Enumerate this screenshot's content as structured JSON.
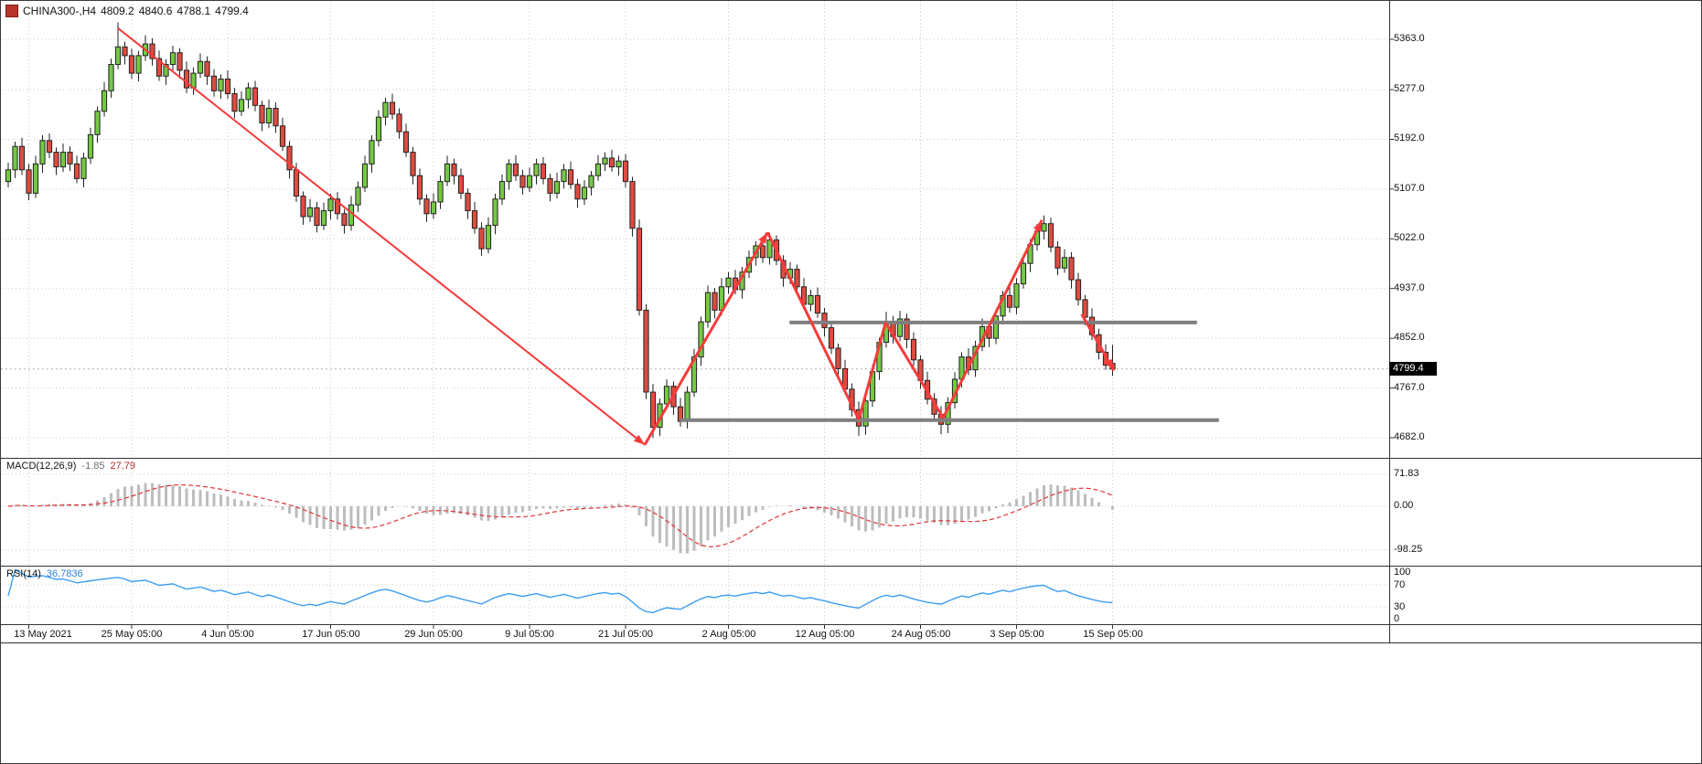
{
  "header": {
    "symbol_period": "CHINA300-,H4",
    "open": "4809.2",
    "high": "4840.6",
    "low": "4788.1",
    "close": "4799.4"
  },
  "price_tag": "4799.4",
  "panes": {
    "macd": {
      "name": "MACD(12,26,9)",
      "value_main": "-1.85",
      "value_signal": "27.79",
      "axis_labels": [
        "71.83",
        "0.00",
        "-98.25"
      ],
      "axis_values": [
        71.83,
        0,
        -98.25
      ]
    },
    "rsi": {
      "name": "RSI(14)",
      "value": "36.7836",
      "axis_labels": [
        "100",
        "70",
        "30",
        "0"
      ],
      "axis_values": [
        100,
        70,
        30,
        0
      ]
    }
  },
  "colors": {
    "background": "#ffffff",
    "grid": "#c9c9c9",
    "separator": "#333333",
    "candle_up": "#74c943",
    "candle_down": "#e04b3f",
    "candle_outline": "#222222",
    "trend_arrow": "#f63b3b",
    "sr_line": "#7f7f7f",
    "macd_histogram": "#bdbdbd",
    "macd_signal": "#e03535",
    "rsi_line": "#3d9df2",
    "price_line": "#b0b0b0",
    "price_tag_bg": "#000000",
    "price_tag_text": "#ffffff"
  },
  "chart_data": {
    "type": "candlestick",
    "title": "CHINA300-,H4",
    "symbol": "CHINA300-",
    "timeframe": "H4",
    "last_ohlc": {
      "open": 4809.2,
      "high": 4840.6,
      "low": 4788.1,
      "close": 4799.4
    },
    "current_price": 4799.4,
    "ylim": [
      4640,
      5405
    ],
    "y_ticks": [
      5363,
      5277,
      5192,
      5107,
      5022,
      4937,
      4852,
      4767,
      4682
    ],
    "y_tick_labels": [
      "5363.0",
      "5277.0",
      "5192.0",
      "5107.0",
      "5022.0",
      "4937.0",
      "4852.0",
      "4767.0",
      "4682.0"
    ],
    "x_ticks": [
      {
        "label": "13 May 2021",
        "bar": 3
      },
      {
        "label": "25 May 05:00",
        "bar": 18
      },
      {
        "label": "4 Jun 05:00",
        "bar": 32
      },
      {
        "label": "17 Jun 05:00",
        "bar": 47
      },
      {
        "label": "29 Jun 05:00",
        "bar": 62
      },
      {
        "label": "9 Jul 05:00",
        "bar": 76
      },
      {
        "label": "21 Jul 05:00",
        "bar": 90
      },
      {
        "label": "2 Aug 05:00",
        "bar": 105
      },
      {
        "label": "12 Aug 05:00",
        "bar": 119
      },
      {
        "label": "24 Aug 05:00",
        "bar": 133
      },
      {
        "label": "3 Sep 05:00",
        "bar": 147
      },
      {
        "label": "15 Sep 05:00",
        "bar": 161
      }
    ],
    "ohlc": [
      [
        5120,
        5152,
        5110,
        5140
      ],
      [
        5140,
        5188,
        5126,
        5180
      ],
      [
        5180,
        5195,
        5131,
        5140
      ],
      [
        5140,
        5150,
        5088,
        5100
      ],
      [
        5100,
        5164,
        5092,
        5150
      ],
      [
        5150,
        5199,
        5135,
        5190
      ],
      [
        5190,
        5202,
        5160,
        5170
      ],
      [
        5170,
        5178,
        5131,
        5145
      ],
      [
        5145,
        5185,
        5136,
        5170
      ],
      [
        5170,
        5180,
        5138,
        5150
      ],
      [
        5150,
        5164,
        5117,
        5125
      ],
      [
        5125,
        5169,
        5110,
        5160
      ],
      [
        5160,
        5212,
        5150,
        5200
      ],
      [
        5200,
        5248,
        5186,
        5240
      ],
      [
        5240,
        5290,
        5231,
        5275
      ],
      [
        5275,
        5330,
        5263,
        5320
      ],
      [
        5320,
        5392,
        5312,
        5350
      ],
      [
        5350,
        5359,
        5320,
        5335
      ],
      [
        5335,
        5347,
        5295,
        5305
      ],
      [
        5305,
        5343,
        5291,
        5335
      ],
      [
        5335,
        5370,
        5326,
        5355
      ],
      [
        5355,
        5365,
        5318,
        5330
      ],
      [
        5330,
        5344,
        5292,
        5300
      ],
      [
        5300,
        5329,
        5285,
        5320
      ],
      [
        5320,
        5352,
        5310,
        5340
      ],
      [
        5340,
        5348,
        5296,
        5310
      ],
      [
        5310,
        5325,
        5271,
        5280
      ],
      [
        5280,
        5315,
        5268,
        5305
      ],
      [
        5305,
        5339,
        5297,
        5325
      ],
      [
        5325,
        5334,
        5285,
        5300
      ],
      [
        5300,
        5312,
        5265,
        5275
      ],
      [
        5275,
        5303,
        5261,
        5295
      ],
      [
        5295,
        5310,
        5261,
        5270
      ],
      [
        5270,
        5280,
        5228,
        5240
      ],
      [
        5240,
        5274,
        5232,
        5260
      ],
      [
        5260,
        5289,
        5245,
        5280
      ],
      [
        5280,
        5292,
        5240,
        5250
      ],
      [
        5250,
        5258,
        5206,
        5220
      ],
      [
        5220,
        5260,
        5211,
        5245
      ],
      [
        5245,
        5255,
        5203,
        5215
      ],
      [
        5215,
        5229,
        5172,
        5180
      ],
      [
        5180,
        5189,
        5125,
        5140
      ],
      [
        5140,
        5152,
        5085,
        5095
      ],
      [
        5095,
        5103,
        5046,
        5060
      ],
      [
        5060,
        5090,
        5051,
        5075
      ],
      [
        5075,
        5085,
        5033,
        5045
      ],
      [
        5045,
        5084,
        5037,
        5070
      ],
      [
        5070,
        5099,
        5055,
        5090
      ],
      [
        5090,
        5102,
        5055,
        5065
      ],
      [
        5065,
        5073,
        5031,
        5045
      ],
      [
        5045,
        5095,
        5036,
        5080
      ],
      [
        5080,
        5120,
        5068,
        5110
      ],
      [
        5110,
        5164,
        5102,
        5150
      ],
      [
        5150,
        5199,
        5135,
        5190
      ],
      [
        5190,
        5242,
        5180,
        5230
      ],
      [
        5230,
        5263,
        5216,
        5255
      ],
      [
        5255,
        5270,
        5226,
        5235
      ],
      [
        5235,
        5245,
        5193,
        5205
      ],
      [
        5205,
        5219,
        5162,
        5170
      ],
      [
        5170,
        5179,
        5115,
        5130
      ],
      [
        5130,
        5142,
        5080,
        5090
      ],
      [
        5090,
        5098,
        5051,
        5065
      ],
      [
        5065,
        5100,
        5056,
        5085
      ],
      [
        5085,
        5130,
        5073,
        5120
      ],
      [
        5120,
        5164,
        5112,
        5150
      ],
      [
        5150,
        5159,
        5115,
        5130
      ],
      [
        5130,
        5142,
        5090,
        5100
      ],
      [
        5100,
        5108,
        5056,
        5070
      ],
      [
        5070,
        5085,
        5031,
        5040
      ],
      [
        5040,
        5050,
        4993,
        5005
      ],
      [
        5005,
        5059,
        4997,
        5045
      ],
      [
        5045,
        5099,
        5030,
        5090
      ],
      [
        5090,
        5132,
        5080,
        5120
      ],
      [
        5120,
        5158,
        5106,
        5150
      ],
      [
        5150,
        5165,
        5121,
        5130
      ],
      [
        5130,
        5140,
        5098,
        5110
      ],
      [
        5110,
        5144,
        5102,
        5130
      ],
      [
        5130,
        5159,
        5115,
        5150
      ],
      [
        5150,
        5162,
        5115,
        5125
      ],
      [
        5125,
        5133,
        5086,
        5100
      ],
      [
        5100,
        5135,
        5091,
        5120
      ],
      [
        5120,
        5150,
        5108,
        5140
      ],
      [
        5140,
        5154,
        5107,
        5115
      ],
      [
        5115,
        5124,
        5075,
        5090
      ],
      [
        5090,
        5122,
        5080,
        5110
      ],
      [
        5110,
        5138,
        5096,
        5130
      ],
      [
        5130,
        5165,
        5121,
        5150
      ],
      [
        5150,
        5170,
        5138,
        5160
      ],
      [
        5160,
        5174,
        5137,
        5145
      ],
      [
        5145,
        5164,
        5130,
        5155
      ],
      [
        5155,
        5167,
        5110,
        5120
      ],
      [
        5120,
        5128,
        5026,
        5040
      ],
      [
        5040,
        5055,
        4891,
        4900
      ],
      [
        4900,
        4910,
        4748,
        4760
      ],
      [
        4760,
        4774,
        4682,
        4700
      ],
      [
        4700,
        4749,
        4685,
        4740
      ],
      [
        4740,
        4782,
        4730,
        4770
      ],
      [
        4770,
        4778,
        4721,
        4735
      ],
      [
        4735,
        4750,
        4701,
        4710
      ],
      [
        4710,
        4770,
        4698,
        4760
      ],
      [
        4760,
        4834,
        4752,
        4820
      ],
      [
        4820,
        4889,
        4805,
        4880
      ],
      [
        4880,
        4942,
        4870,
        4930
      ],
      [
        4930,
        4938,
        4886,
        4900
      ],
      [
        4900,
        4955,
        4891,
        4940
      ],
      [
        4940,
        4965,
        4928,
        4955
      ],
      [
        4955,
        4969,
        4927,
        4935
      ],
      [
        4935,
        4974,
        4920,
        4965
      ],
      [
        4965,
        5002,
        4955,
        4990
      ],
      [
        4990,
        5018,
        4976,
        5010
      ],
      [
        5010,
        5025,
        4981,
        4990
      ],
      [
        4990,
        5032,
        4978,
        5020
      ],
      [
        5020,
        5028,
        4977,
        4985
      ],
      [
        4985,
        4994,
        4940,
        4955
      ],
      [
        4955,
        4982,
        4945,
        4970
      ],
      [
        4970,
        4978,
        4926,
        4940
      ],
      [
        4940,
        4955,
        4901,
        4910
      ],
      [
        4910,
        4935,
        4898,
        4925
      ],
      [
        4925,
        4939,
        4887,
        4895
      ],
      [
        4895,
        4904,
        4855,
        4870
      ],
      [
        4870,
        4882,
        4825,
        4835
      ],
      [
        4835,
        4843,
        4786,
        4800
      ],
      [
        4800,
        4815,
        4756,
        4765
      ],
      [
        4765,
        4775,
        4718,
        4730
      ],
      [
        4730,
        4744,
        4685,
        4702
      ],
      [
        4702,
        4754,
        4687,
        4745
      ],
      [
        4745,
        4807,
        4735,
        4795
      ],
      [
        4795,
        4853,
        4781,
        4845
      ],
      [
        4845,
        4897,
        4836,
        4880
      ],
      [
        4880,
        4890,
        4843,
        4855
      ],
      [
        4855,
        4899,
        4847,
        4885
      ],
      [
        4885,
        4894,
        4835,
        4850
      ],
      [
        4850,
        4862,
        4805,
        4815
      ],
      [
        4815,
        4823,
        4766,
        4780
      ],
      [
        4780,
        4795,
        4739,
        4748
      ],
      [
        4748,
        4758,
        4710,
        4722
      ],
      [
        4722,
        4736,
        4688,
        4705
      ],
      [
        4705,
        4751,
        4690,
        4742
      ],
      [
        4742,
        4794,
        4732,
        4782
      ],
      [
        4782,
        4828,
        4768,
        4820
      ],
      [
        4820,
        4835,
        4789,
        4798
      ],
      [
        4798,
        4848,
        4786,
        4838
      ],
      [
        4838,
        4886,
        4830,
        4872
      ],
      [
        4872,
        4881,
        4837,
        4852
      ],
      [
        4852,
        4902,
        4842,
        4890
      ],
      [
        4890,
        4933,
        4876,
        4925
      ],
      [
        4925,
        4940,
        4896,
        4905
      ],
      [
        4905,
        4955,
        4893,
        4945
      ],
      [
        4945,
        4994,
        4937,
        4980
      ],
      [
        4980,
        5021,
        4965,
        5012
      ],
      [
        5012,
        5047,
        5002,
        5035
      ],
      [
        5035,
        5062,
        5021,
        5048
      ],
      [
        5048,
        5058,
        4999,
        5008
      ],
      [
        5008,
        5018,
        4960,
        4972
      ],
      [
        4972,
        5004,
        4964,
        4990
      ],
      [
        4990,
        4999,
        4937,
        4952
      ],
      [
        4952,
        4964,
        4908,
        4918
      ],
      [
        4918,
        4926,
        4874,
        4888
      ],
      [
        4888,
        4903,
        4849,
        4858
      ],
      [
        4858,
        4868,
        4816,
        4828
      ],
      [
        4828,
        4842,
        4798,
        4806
      ],
      [
        4809.2,
        4840.6,
        4788.1,
        4799.4
      ]
    ],
    "overlays": {
      "support_resistance": [
        {
          "price": 4879,
          "b1": 113.9,
          "b2": 173.3,
          "width": 4
        },
        {
          "price": 4712,
          "b1": 97.9,
          "b2": 176.5,
          "width": 4
        }
      ],
      "trend_arrows": [
        {
          "b1": 16,
          "p1": 5382,
          "b2": 92.8,
          "p2": 4670,
          "width": 2,
          "head": true
        },
        {
          "b1": 92.8,
          "p1": 4670,
          "b2": 110.7,
          "p2": 5033,
          "width": 3,
          "head": true
        },
        {
          "b1": 110.7,
          "p1": 5033,
          "b2": 124,
          "p2": 4713,
          "width": 3,
          "head": false
        },
        {
          "b1": 124,
          "p1": 4713,
          "b2": 127.9,
          "p2": 4879,
          "width": 3,
          "head": false
        },
        {
          "b1": 127.9,
          "p1": 4879,
          "b2": 136.3,
          "p2": 4716,
          "width": 3,
          "head": false
        },
        {
          "b1": 136.3,
          "p1": 4716,
          "b2": 150.7,
          "p2": 5054,
          "width": 3,
          "head": true
        },
        {
          "b1": 156.5,
          "p1": 4893,
          "b2": 161.2,
          "p2": 4797,
          "width": 3,
          "head": true
        }
      ]
    },
    "indicators": {
      "macd": {
        "fast": 12,
        "slow": 26,
        "signal": 9,
        "display_main": -1.85,
        "display_signal": 27.79,
        "axis_ticks": [
          71.83,
          0,
          -98.25
        ]
      },
      "rsi": {
        "period": 14,
        "display_value": 36.7836,
        "levels": [
          70,
          30
        ],
        "axis_ticks": [
          100,
          70,
          30,
          0
        ]
      }
    }
  }
}
